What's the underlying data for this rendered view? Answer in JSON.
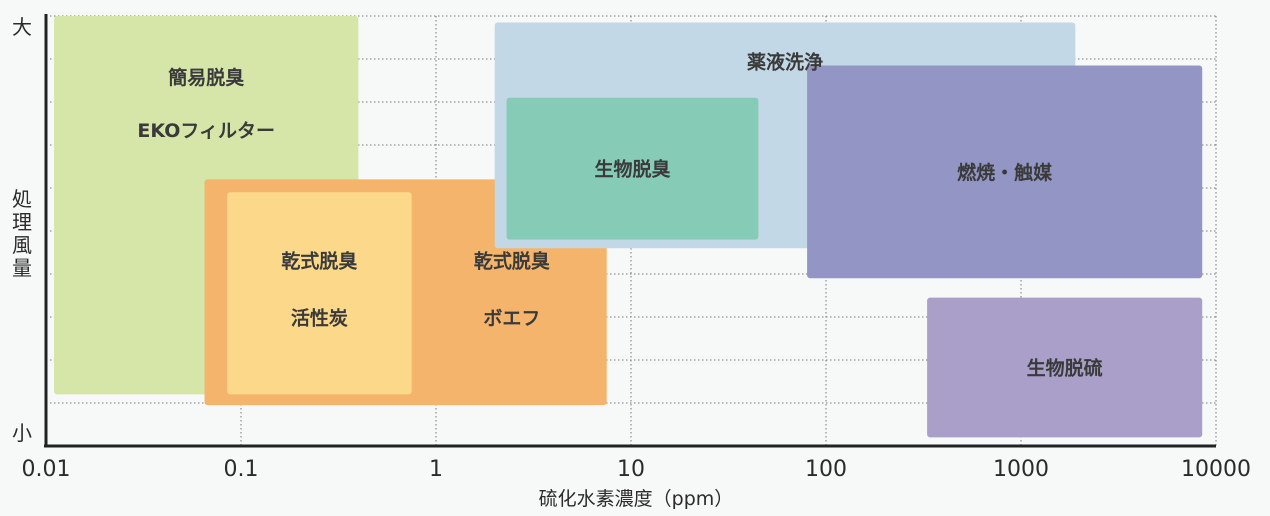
{
  "chart_data": {
    "type": "region-map",
    "x_scale": "log",
    "xlim": [
      0.01,
      10000
    ],
    "x_ticks": [
      "0.01",
      "0.1",
      "1",
      "10",
      "100",
      "1000",
      "10000"
    ],
    "xlabel": "硫化水素濃度（ppm）",
    "ylabel": "処理風量",
    "y_top_label": "大",
    "y_bottom_label": "小",
    "y_scale": "relative",
    "ylim": [
      0,
      10
    ],
    "grid": true,
    "regions": [
      {
        "id": "simple",
        "labels": [
          "簡易脱臭",
          "EKOフィルター"
        ],
        "x_range": [
          0.011,
          0.4
        ],
        "y_range": [
          1.2,
          10.0
        ],
        "color": "#d6e6a8"
      },
      {
        "id": "dry-outer",
        "labels": [],
        "x_range": [
          0.065,
          7.5
        ],
        "y_range": [
          0.95,
          6.2
        ],
        "color": "#f4b46c"
      },
      {
        "id": "dry-carbon",
        "labels": [
          "乾式脱臭",
          "活性炭"
        ],
        "x_range": [
          0.085,
          0.75
        ],
        "y_range": [
          1.2,
          5.9
        ],
        "color": "#fcd98a"
      },
      {
        "id": "dry-boef",
        "labels": [
          "乾式脱臭",
          "ボエフ"
        ],
        "x_range": [
          0.8,
          7.5
        ],
        "y_range": [
          1.2,
          5.9
        ],
        "color": "#f4b46c"
      },
      {
        "id": "chemical",
        "labels": [
          "薬液洗浄"
        ],
        "x_range": [
          2.0,
          1900
        ],
        "y_range": [
          4.6,
          9.85
        ],
        "color": "#c2d8e6"
      },
      {
        "id": "bio-deodor",
        "labels": [
          "生物脱臭"
        ],
        "x_range": [
          2.3,
          45
        ],
        "y_range": [
          4.8,
          8.1
        ],
        "color": "#86cbb6"
      },
      {
        "id": "combustion",
        "labels": [
          "燃焼・触媒"
        ],
        "x_range": [
          80,
          8500
        ],
        "y_range": [
          3.9,
          8.85
        ],
        "color": "#9396c4"
      },
      {
        "id": "bio-desulf",
        "labels": [
          "生物脱硫"
        ],
        "x_range": [
          330,
          8500
        ],
        "y_range": [
          0.2,
          3.45
        ],
        "color": "#a99fc8"
      }
    ]
  }
}
